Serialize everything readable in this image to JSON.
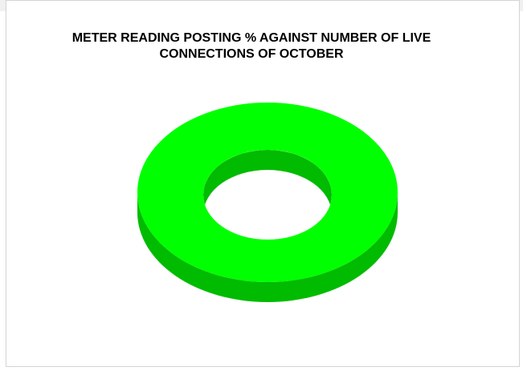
{
  "chart_data": {
    "type": "pie",
    "title": "METER READING POSTING % AGAINST NUMBER OF LIVE\nCONNECTIONS OF OCTOBER",
    "style": "3d-donut",
    "slices": [
      {
        "value": 100,
        "color": "#00ff00",
        "side_color": "#00bb00"
      }
    ]
  }
}
